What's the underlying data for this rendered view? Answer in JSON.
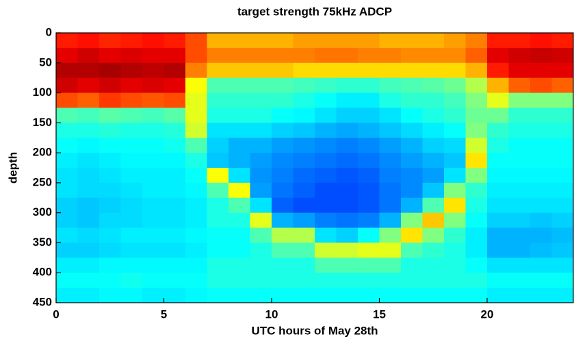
{
  "chart_data": {
    "type": "heatmap",
    "title": "target strength 75kHz ADCP",
    "xlabel": "UTC hours of May 28th",
    "ylabel": "depth",
    "colormap": "jet",
    "y_inverted": true,
    "xlim": [
      0,
      24
    ],
    "xticks": [
      0,
      5,
      10,
      15,
      20
    ],
    "ylim": [
      0,
      450
    ],
    "yticks": [
      0,
      50,
      100,
      150,
      200,
      250,
      300,
      350,
      400,
      450
    ],
    "x": [
      0,
      1,
      2,
      3,
      4,
      5,
      6,
      7,
      8,
      9,
      10,
      11,
      12,
      13,
      14,
      15,
      16,
      17,
      18,
      19,
      20,
      21,
      22,
      23,
      24
    ],
    "y": [
      0,
      25,
      50,
      75,
      100,
      125,
      150,
      175,
      200,
      225,
      250,
      275,
      300,
      325,
      350,
      375,
      400,
      425,
      450
    ],
    "z": [
      [
        0.85,
        0.9,
        0.95,
        0.92,
        0.8,
        0.45,
        0.4,
        0.38,
        0.36,
        0.35,
        0.35,
        0.33,
        0.33,
        0.35,
        0.33,
        0.36,
        0.38,
        0.36
      ],
      [
        0.86,
        0.92,
        0.95,
        0.9,
        0.78,
        0.44,
        0.4,
        0.37,
        0.35,
        0.34,
        0.34,
        0.32,
        0.32,
        0.34,
        0.33,
        0.36,
        0.38,
        0.36
      ],
      [
        0.84,
        0.9,
        0.96,
        0.92,
        0.82,
        0.46,
        0.41,
        0.38,
        0.36,
        0.35,
        0.34,
        0.33,
        0.34,
        0.35,
        0.34,
        0.37,
        0.38,
        0.37
      ],
      [
        0.85,
        0.91,
        0.95,
        0.9,
        0.8,
        0.45,
        0.4,
        0.38,
        0.37,
        0.36,
        0.35,
        0.34,
        0.34,
        0.36,
        0.35,
        0.37,
        0.39,
        0.37
      ],
      [
        0.86,
        0.9,
        0.94,
        0.91,
        0.79,
        0.44,
        0.4,
        0.38,
        0.37,
        0.36,
        0.36,
        0.35,
        0.35,
        0.36,
        0.35,
        0.37,
        0.38,
        0.36
      ],
      [
        0.85,
        0.9,
        0.95,
        0.9,
        0.8,
        0.46,
        0.41,
        0.39,
        0.37,
        0.36,
        0.36,
        0.35,
        0.35,
        0.36,
        0.35,
        0.37,
        0.38,
        0.36
      ],
      [
        0.8,
        0.8,
        0.75,
        0.62,
        0.6,
        0.6,
        0.58,
        0.45,
        0.4,
        0.38,
        0.37,
        0.36,
        0.36,
        0.37,
        0.36,
        0.37,
        0.38,
        0.37
      ],
      [
        0.7,
        0.75,
        0.68,
        0.45,
        0.42,
        0.4,
        0.35,
        0.33,
        0.32,
        0.62,
        0.45,
        0.4,
        0.4,
        0.38,
        0.38,
        0.4,
        0.4,
        0.38
      ],
      [
        0.7,
        0.75,
        0.68,
        0.45,
        0.42,
        0.4,
        0.35,
        0.3,
        0.3,
        0.35,
        0.62,
        0.45,
        0.4,
        0.38,
        0.38,
        0.4,
        0.4,
        0.38
      ],
      [
        0.7,
        0.75,
        0.68,
        0.45,
        0.42,
        0.4,
        0.35,
        0.3,
        0.28,
        0.27,
        0.28,
        0.35,
        0.6,
        0.45,
        0.4,
        0.4,
        0.4,
        0.38
      ],
      [
        0.7,
        0.75,
        0.68,
        0.45,
        0.42,
        0.38,
        0.33,
        0.28,
        0.26,
        0.25,
        0.24,
        0.22,
        0.3,
        0.55,
        0.45,
        0.4,
        0.4,
        0.38
      ],
      [
        0.72,
        0.75,
        0.66,
        0.44,
        0.4,
        0.37,
        0.32,
        0.27,
        0.25,
        0.23,
        0.22,
        0.2,
        0.28,
        0.55,
        0.45,
        0.4,
        0.4,
        0.38
      ],
      [
        0.72,
        0.76,
        0.66,
        0.43,
        0.38,
        0.35,
        0.3,
        0.26,
        0.24,
        0.22,
        0.2,
        0.2,
        0.25,
        0.35,
        0.58,
        0.45,
        0.4,
        0.38
      ],
      [
        0.72,
        0.76,
        0.66,
        0.42,
        0.36,
        0.33,
        0.29,
        0.25,
        0.23,
        0.21,
        0.2,
        0.2,
        0.24,
        0.33,
        0.58,
        0.45,
        0.4,
        0.38
      ],
      [
        0.72,
        0.75,
        0.66,
        0.42,
        0.36,
        0.33,
        0.3,
        0.26,
        0.24,
        0.22,
        0.21,
        0.21,
        0.25,
        0.38,
        0.6,
        0.45,
        0.4,
        0.38
      ],
      [
        0.7,
        0.75,
        0.66,
        0.44,
        0.4,
        0.35,
        0.32,
        0.28,
        0.26,
        0.25,
        0.24,
        0.24,
        0.3,
        0.5,
        0.6,
        0.45,
        0.4,
        0.38
      ],
      [
        0.7,
        0.74,
        0.66,
        0.45,
        0.42,
        0.38,
        0.34,
        0.3,
        0.28,
        0.26,
        0.26,
        0.3,
        0.5,
        0.65,
        0.45,
        0.4,
        0.4,
        0.38
      ],
      [
        0.7,
        0.74,
        0.66,
        0.46,
        0.42,
        0.4,
        0.36,
        0.33,
        0.3,
        0.28,
        0.32,
        0.45,
        0.68,
        0.5,
        0.42,
        0.4,
        0.4,
        0.38
      ],
      [
        0.72,
        0.74,
        0.66,
        0.48,
        0.44,
        0.42,
        0.38,
        0.34,
        0.32,
        0.35,
        0.5,
        0.65,
        0.5,
        0.42,
        0.4,
        0.4,
        0.4,
        0.38
      ],
      [
        0.75,
        0.78,
        0.7,
        0.55,
        0.5,
        0.48,
        0.5,
        0.58,
        0.65,
        0.5,
        0.42,
        0.4,
        0.38,
        0.36,
        0.36,
        0.38,
        0.4,
        0.38
      ],
      [
        0.85,
        0.9,
        0.85,
        0.7,
        0.6,
        0.48,
        0.42,
        0.4,
        0.38,
        0.37,
        0.36,
        0.35,
        0.33,
        0.3,
        0.3,
        0.35,
        0.38,
        0.36
      ],
      [
        0.85,
        0.92,
        0.9,
        0.78,
        0.5,
        0.42,
        0.4,
        0.38,
        0.38,
        0.37,
        0.36,
        0.35,
        0.33,
        0.3,
        0.3,
        0.35,
        0.38,
        0.36
      ],
      [
        0.86,
        0.93,
        0.9,
        0.8,
        0.5,
        0.42,
        0.4,
        0.38,
        0.38,
        0.37,
        0.36,
        0.35,
        0.32,
        0.3,
        0.31,
        0.35,
        0.38,
        0.36
      ],
      [
        0.85,
        0.92,
        0.9,
        0.78,
        0.5,
        0.42,
        0.4,
        0.38,
        0.38,
        0.37,
        0.36,
        0.35,
        0.33,
        0.31,
        0.32,
        0.35,
        0.38,
        0.36
      ]
    ]
  }
}
